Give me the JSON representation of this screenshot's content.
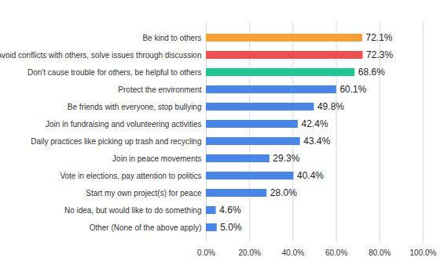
{
  "chart_data": {
    "type": "bar",
    "orientation": "horizontal",
    "categories": [
      "Be kind to others",
      "Avoid conflicts with others, solve issues through discussion",
      "Don't cause trouble for others, be helpful to others",
      "Protect the environment",
      "Be friends with everyone, stop bullying",
      "Join in fundraising and volunteering activities",
      "Daily practices like picking up trash and recycling",
      "Join in peace movements",
      "Vote in elections, pay attention to politics",
      "Start my own project(s) for peace",
      "No idea, but would like to do something",
      "Other (None of the above apply)"
    ],
    "values": [
      72.1,
      72.3,
      68.6,
      60.1,
      49.8,
      42.4,
      43.4,
      29.3,
      40.4,
      28.0,
      4.6,
      5.0
    ],
    "value_labels": [
      "72.1%",
      "72.3%",
      "68.6%",
      "60.1%",
      "49.8%",
      "42.4%",
      "43.4%",
      "29.3%",
      "40.4%",
      "28.0%",
      "4.6%",
      "5.0%"
    ],
    "colors": [
      "#f7a035",
      "#ef4f4f",
      "#1fc48f",
      "#4a86e8",
      "#4a86e8",
      "#4a86e8",
      "#4a86e8",
      "#4a86e8",
      "#4a86e8",
      "#4a86e8",
      "#4a86e8",
      "#4a86e8"
    ],
    "xlim": [
      0,
      100
    ],
    "xticks": [
      {
        "value": 0,
        "label": "0.0%"
      },
      {
        "value": 20,
        "label": "20.0%"
      },
      {
        "value": 40,
        "label": "40.0%"
      },
      {
        "value": 60,
        "label": "60.0%"
      },
      {
        "value": 80,
        "label": "80.0%"
      },
      {
        "value": 100,
        "label": "100.0%"
      }
    ],
    "grid": true,
    "data_labels": true
  }
}
